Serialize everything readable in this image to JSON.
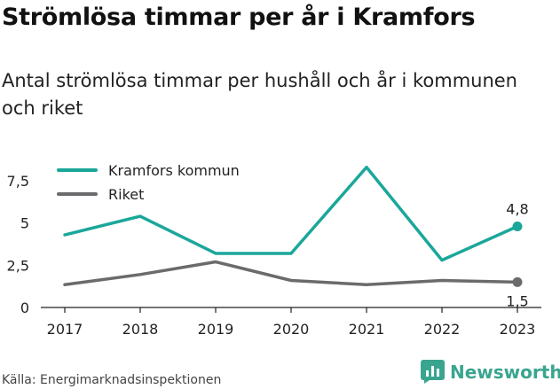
{
  "title": "Strömlösa timmar per år i Kramfors",
  "subtitle": "Antal strömlösa timmar per hushåll och år i kommunen och riket",
  "source": "Källa: Energimarknadsinspektionen",
  "brand": {
    "name": "Newsworthy",
    "icon": "bar-chart-icon"
  },
  "chart_data": {
    "type": "line",
    "x": [
      "2017",
      "2018",
      "2019",
      "2020",
      "2021",
      "2022",
      "2023"
    ],
    "series": [
      {
        "name": "Kramfors kommun",
        "color": "#1aa79a",
        "values": [
          4.3,
          5.4,
          3.2,
          3.2,
          8.3,
          2.8,
          4.8
        ],
        "end_label": "4,8"
      },
      {
        "name": "Riket",
        "color": "#6b6b6e",
        "values": [
          1.35,
          1.95,
          2.7,
          1.6,
          1.35,
          1.6,
          1.5
        ],
        "end_label": "1,5"
      }
    ],
    "y_ticks": [
      {
        "value": 0,
        "label": "0"
      },
      {
        "value": 2.5,
        "label": "2,5"
      },
      {
        "value": 5,
        "label": "5"
      },
      {
        "value": 7.5,
        "label": "7,5"
      }
    ],
    "ylim": [
      0,
      8.5
    ],
    "legend": "top-left",
    "grid": false
  }
}
